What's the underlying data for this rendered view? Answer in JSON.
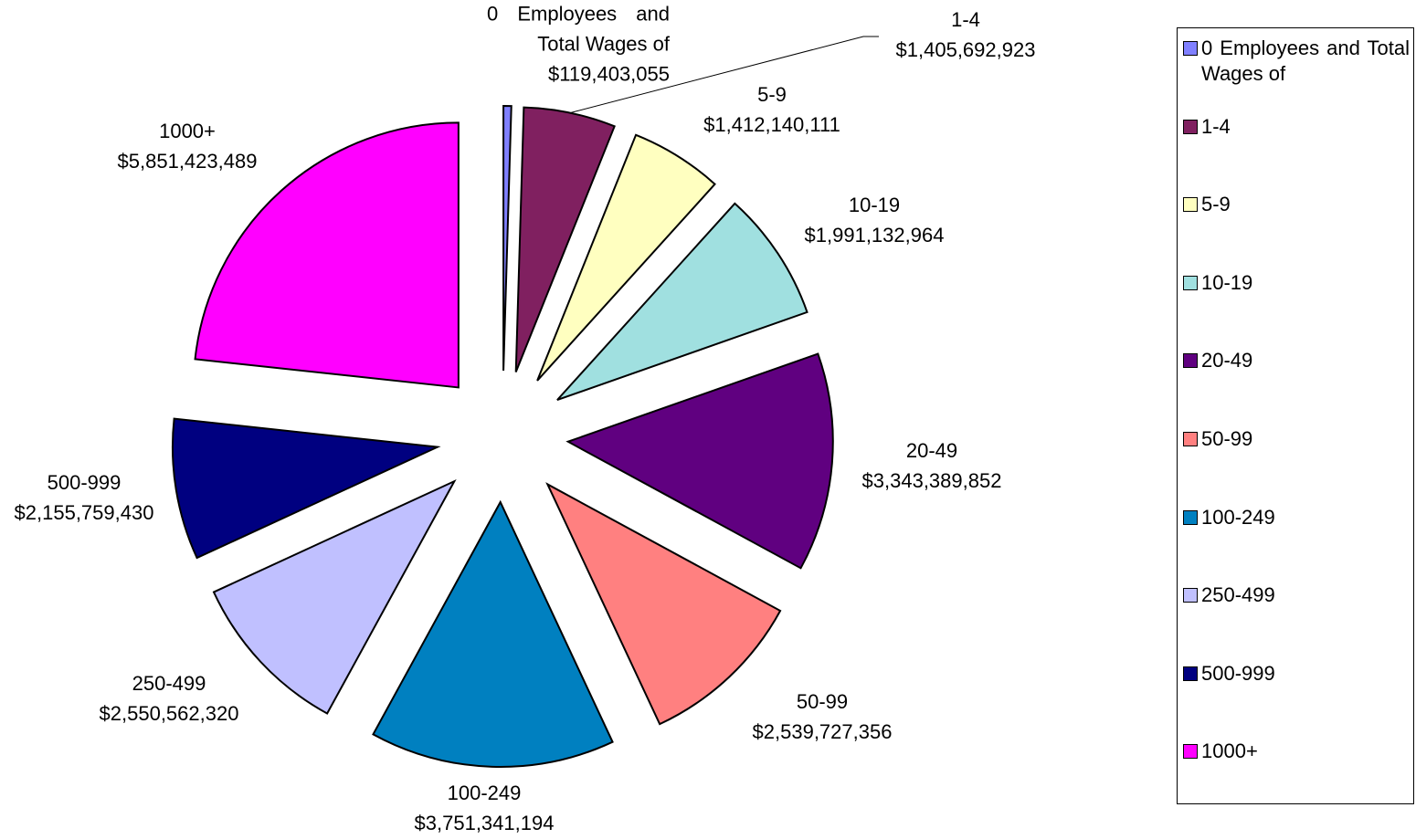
{
  "chart_data": {
    "type": "pie",
    "categories": [
      "0  Employees    and Total Wages of",
      "1-4",
      "5-9",
      "10-19",
      "20-49",
      "50-99",
      "100-249",
      "250-499",
      "500-999",
      "1000+"
    ],
    "values": [
      119403055,
      1405692923,
      1412140111,
      1991132964,
      3343389852,
      2539727356,
      3751341194,
      2550562320,
      2155759430,
      5851423489
    ],
    "value_labels": [
      "$119,403,055",
      "$1,405,692,923",
      "$1,412,140,111",
      "$1,991,132,964",
      "$3,343,389,852",
      "$2,539,727,356",
      "$3,751,341,194",
      "$2,550,562,320",
      "$2,155,759,430",
      "$5,851,423,489"
    ],
    "colors": [
      "#8080ff",
      "#802060",
      "#ffffc0",
      "#a0e0e0",
      "#600080",
      "#ff8080",
      "#0080c0",
      "#c0c0ff",
      "#000080",
      "#ff00ff"
    ],
    "legend": "right"
  }
}
